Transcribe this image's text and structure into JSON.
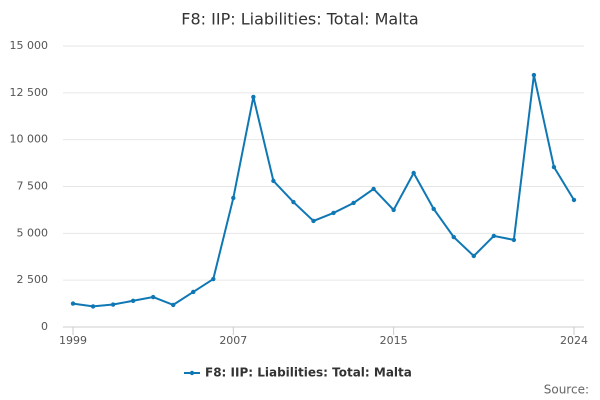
{
  "chart_data": {
    "type": "line",
    "title": "F8: IIP: Liabilities: Total: Malta",
    "x": [
      1999,
      2000,
      2001,
      2002,
      2003,
      2004,
      2005,
      2006,
      2007,
      2008,
      2009,
      2010,
      2011,
      2012,
      2013,
      2014,
      2015,
      2016,
      2017,
      2018,
      2019,
      2020,
      2021,
      2022,
      2023,
      2024
    ],
    "series": [
      {
        "name": "F8: IIP: Liabilities: Total: Malta",
        "color": "#0f78b4",
        "values": [
          1250,
          1100,
          1200,
          1400,
          1600,
          1180,
          1870,
          2560,
          6890,
          12280,
          7800,
          6670,
          5660,
          6090,
          6620,
          7370,
          6250,
          8220,
          6300,
          4800,
          3790,
          4860,
          4650,
          13450,
          8540,
          6780
        ]
      }
    ],
    "xlim": [
      1998.5,
      2024.5
    ],
    "xticks": [
      1999,
      2007,
      2015,
      2024
    ],
    "ylim": [
      0,
      15000
    ],
    "yticks": [
      0,
      {
        "value": 2500,
        "label": "2 500"
      },
      {
        "value": 5000,
        "label": "5 000"
      },
      {
        "value": 7500,
        "label": "7 500"
      },
      {
        "value": 10000,
        "label": "10 000"
      },
      {
        "value": 12500,
        "label": "12 500"
      },
      {
        "value": 15000,
        "label": "15 000"
      }
    ],
    "grid": true,
    "legend": "bottom",
    "source": "Source:"
  }
}
